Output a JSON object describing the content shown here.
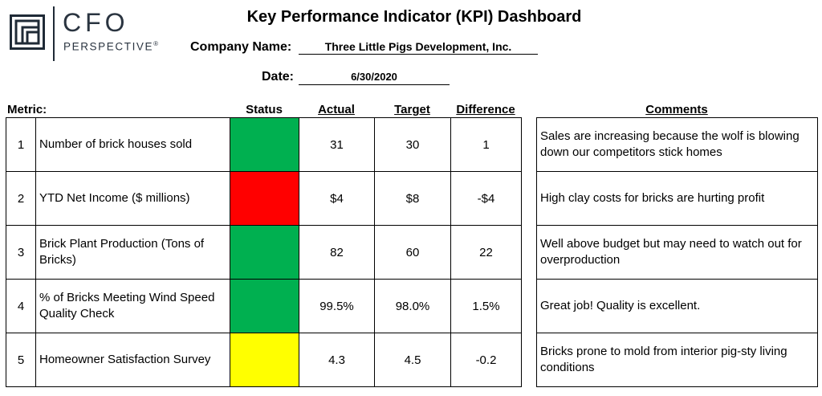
{
  "logo": {
    "line1": "CFO",
    "line2": "PERSPECTIVE",
    "reg": "®"
  },
  "title": "Key Performance Indicator (KPI) Dashboard",
  "company": {
    "label": "Company Name:",
    "value": "Three Little Pigs Development, Inc."
  },
  "date": {
    "label": "Date:",
    "value": "6/30/2020"
  },
  "headers": {
    "metric": "Metric:",
    "status": "Status",
    "actual": "Actual",
    "target": "Target",
    "difference": "Difference",
    "comments": "Comments"
  },
  "status_colors": {
    "green": "#00b050",
    "red": "#ff0000",
    "yellow": "#ffff00"
  },
  "rows": [
    {
      "num": "1",
      "metric": "Number of brick houses sold",
      "status": "green",
      "actual": "31",
      "target": "30",
      "difference": "1",
      "comment": "Sales are increasing because the wolf is blowing down our competitors stick homes"
    },
    {
      "num": "2",
      "metric": "YTD Net Income ($ millions)",
      "status": "red",
      "actual": "$4",
      "target": "$8",
      "difference": "-$4",
      "comment": "High clay costs for bricks are hurting profit"
    },
    {
      "num": "3",
      "metric": "Brick Plant Production (Tons of Bricks)",
      "status": "green",
      "actual": "82",
      "target": "60",
      "difference": "22",
      "comment": "Well above budget but may need to watch out for overproduction"
    },
    {
      "num": "4",
      "metric": "% of Bricks Meeting Wind Speed Quality Check",
      "status": "green",
      "actual": "99.5%",
      "target": "98.0%",
      "difference": "1.5%",
      "comment": "Great job!  Quality is excellent."
    },
    {
      "num": "5",
      "metric": "Homeowner Satisfaction Survey",
      "status": "yellow",
      "actual": "4.3",
      "target": "4.5",
      "difference": "-0.2",
      "comment": "Bricks prone to mold from interior pig-sty living conditions"
    }
  ]
}
